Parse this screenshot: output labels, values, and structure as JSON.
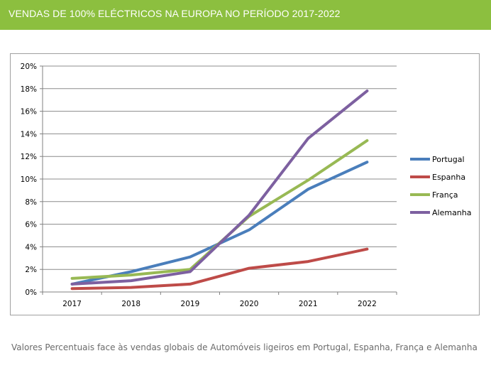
{
  "header": {
    "title": "VENDAS DE 100% ELÉCTRICOS NA EUROPA NO PERÍODO 2017-2022"
  },
  "caption": "Valores Percentuais face às vendas globais de Automóveis ligeiros em Portugal, Espanha, França e Alemanha",
  "colors": {
    "header_bg": "#8cbf3f"
  },
  "chart_data": {
    "type": "line",
    "title": "VENDAS DE 100% ELÉCTRICOS NA EUROPA NO PERÍODO 2017-2022",
    "xlabel": "",
    "ylabel": "",
    "categories": [
      "2017",
      "2018",
      "2019",
      "2020",
      "2021",
      "2022"
    ],
    "ylim": [
      0,
      20
    ],
    "yticks": [
      0,
      2,
      4,
      6,
      8,
      10,
      12,
      14,
      16,
      18,
      20
    ],
    "ytick_labels": [
      "0%",
      "2%",
      "4%",
      "6%",
      "8%",
      "10%",
      "12%",
      "14%",
      "16%",
      "18%",
      "20%"
    ],
    "grid": true,
    "legend_position": "right",
    "series": [
      {
        "name": "Portugal",
        "color": "#4a7ebb",
        "values": [
          0.7,
          1.8,
          3.1,
          5.5,
          9.1,
          11.5
        ]
      },
      {
        "name": "Espanha",
        "color": "#be4b48",
        "values": [
          0.3,
          0.4,
          0.7,
          2.1,
          2.7,
          3.8
        ]
      },
      {
        "name": "França",
        "color": "#98b954",
        "values": [
          1.2,
          1.5,
          2.0,
          6.7,
          9.9,
          13.4
        ]
      },
      {
        "name": "Alemanha",
        "color": "#7d60a0",
        "values": [
          0.7,
          1.0,
          1.8,
          6.8,
          13.6,
          17.8
        ]
      }
    ]
  }
}
